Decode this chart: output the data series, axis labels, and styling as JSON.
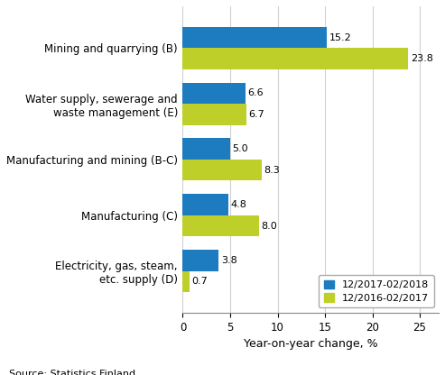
{
  "categories": [
    "Electricity, gas, steam,\netc. supply (D)",
    "Manufacturing (C)",
    "Manufacturing and mining (B-C)",
    "Water supply, sewerage and\nwaste management (E)",
    "Mining and quarrying (B)"
  ],
  "series": [
    {
      "label": "12/2017-02/2018",
      "color": "#1d7bbf",
      "values": [
        3.8,
        4.8,
        5.0,
        6.6,
        15.2
      ]
    },
    {
      "label": "12/2016-02/2017",
      "color": "#bfcf2a",
      "values": [
        0.7,
        8.0,
        8.3,
        6.7,
        23.8
      ]
    }
  ],
  "xlabel": "Year-on-year change, %",
  "xlim": [
    0,
    27
  ],
  "xticks": [
    0,
    5,
    10,
    15,
    20,
    25
  ],
  "source": "Source: Statistics Finland",
  "bar_height": 0.38,
  "background_color": "#ffffff",
  "grid_color": "#d0d0d0",
  "value_fontsize": 8,
  "label_fontsize": 8.5,
  "xlabel_fontsize": 9,
  "source_fontsize": 8,
  "legend_fontsize": 8
}
